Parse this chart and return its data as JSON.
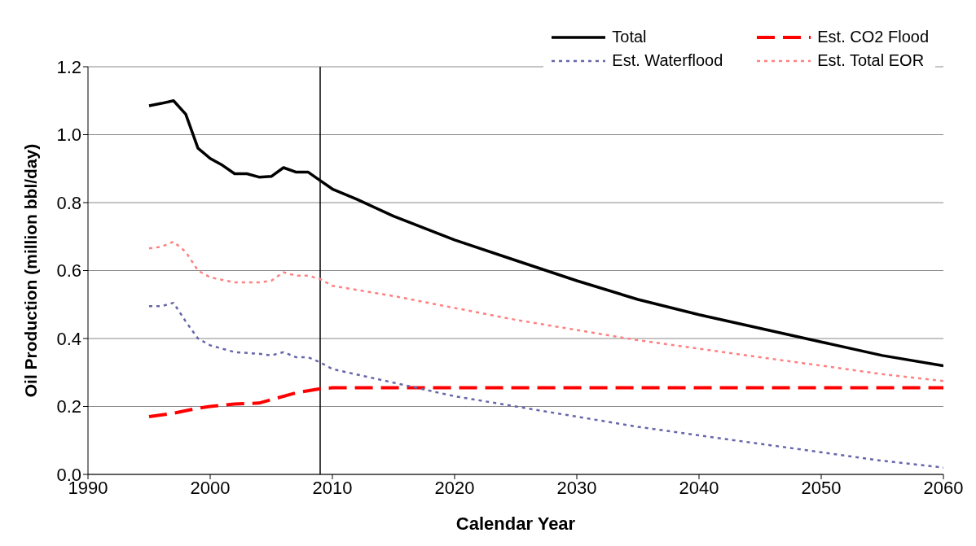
{
  "chart_data": {
    "type": "line",
    "xlabel": "Calendar Year",
    "ylabel": "Oil Production (million bbl/day)",
    "xlim": [
      1990,
      2060
    ],
    "xticks": [
      1990,
      2000,
      2010,
      2020,
      2030,
      2040,
      2050,
      2060
    ],
    "ylim": [
      0,
      1.2
    ],
    "yticks": [
      {
        "value": 0,
        "label": "0.0"
      },
      {
        "value": 0.2,
        "label": "0.2"
      },
      {
        "value": 0.4,
        "label": "0.4"
      },
      {
        "value": 0.6,
        "label": "0.6"
      },
      {
        "value": 0.8,
        "label": "0.8"
      },
      {
        "value": 1,
        "label": "1.0"
      },
      {
        "value": 1.2,
        "label": "1.2"
      }
    ],
    "grid": "y",
    "legend": "top right",
    "marker": "none",
    "ref_lines": [
      {
        "axis": "x",
        "value": 2009,
        "label": null,
        "color": "#000000"
      }
    ],
    "series": [
      {
        "name": "Total",
        "color": "#000000",
        "line_style": "solid",
        "x": [
          1995,
          1996,
          1997,
          1998,
          1999,
          2000,
          2001,
          2002,
          2003,
          2004,
          2005,
          2006,
          2007,
          2008,
          2009,
          2010,
          2012,
          2015,
          2020,
          2025,
          2030,
          2035,
          2040,
          2045,
          2050,
          2055,
          2060
        ],
        "values": [
          1.085,
          1.092,
          1.1,
          1.06,
          0.96,
          0.93,
          0.91,
          0.885,
          0.885,
          0.875,
          0.877,
          0.903,
          0.89,
          0.89,
          0.865,
          0.84,
          0.81,
          0.76,
          0.69,
          0.63,
          0.57,
          0.515,
          0.47,
          0.43,
          0.39,
          0.35,
          0.32
        ]
      },
      {
        "name": "Est. CO2 Flood",
        "color": "#ff0000",
        "line_style": "dashed",
        "x": [
          1995,
          1997,
          1999,
          2000,
          2002,
          2004,
          2005,
          2007,
          2009,
          2010,
          2060
        ],
        "values": [
          0.17,
          0.18,
          0.195,
          0.2,
          0.207,
          0.21,
          0.22,
          0.24,
          0.252,
          0.255,
          0.255
        ]
      },
      {
        "name": "Est. Waterflood",
        "color": "#6666aa",
        "line_style": "dotted",
        "x": [
          1995,
          1996,
          1997,
          1998,
          1999,
          2000,
          2002,
          2004,
          2005,
          2006,
          2007,
          2008,
          2009,
          2010,
          2015,
          2020,
          2025,
          2030,
          2035,
          2040,
          2045,
          2050,
          2055,
          2060
        ],
        "values": [
          0.495,
          0.495,
          0.505,
          0.45,
          0.4,
          0.38,
          0.36,
          0.355,
          0.35,
          0.36,
          0.345,
          0.345,
          0.33,
          0.31,
          0.27,
          0.23,
          0.2,
          0.17,
          0.14,
          0.115,
          0.09,
          0.065,
          0.04,
          0.02
        ]
      },
      {
        "name": "Est. Total EOR",
        "color": "#ff8080",
        "line_style": "dotted",
        "x": [
          1995,
          1996,
          1997,
          1998,
          1999,
          2000,
          2002,
          2004,
          2005,
          2006,
          2007,
          2008,
          2009,
          2010,
          2015,
          2020,
          2025,
          2030,
          2035,
          2040,
          2045,
          2050,
          2055,
          2060
        ],
        "values": [
          0.665,
          0.67,
          0.685,
          0.655,
          0.6,
          0.58,
          0.565,
          0.565,
          0.57,
          0.595,
          0.585,
          0.585,
          0.575,
          0.555,
          0.525,
          0.49,
          0.455,
          0.425,
          0.395,
          0.37,
          0.345,
          0.32,
          0.295,
          0.275
        ]
      }
    ]
  }
}
